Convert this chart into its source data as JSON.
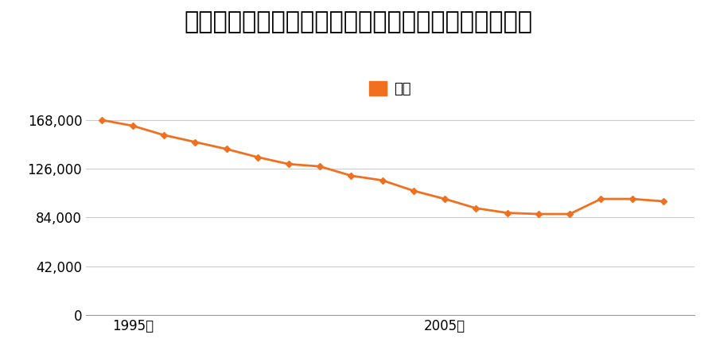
{
  "title": "宮城県仙台市泉区七北田字横山４０番３７の地価推移",
  "legend_label": "価格",
  "years": [
    1994,
    1995,
    1996,
    1997,
    1998,
    1999,
    2000,
    2001,
    2002,
    2003,
    2004,
    2005,
    2006,
    2007,
    2008,
    2009,
    2010,
    2011,
    2012
  ],
  "values": [
    168000,
    163000,
    155000,
    149000,
    143000,
    136000,
    130000,
    128000,
    120000,
    116000,
    107000,
    100000,
    92000,
    88000,
    87000,
    87000,
    100000,
    100000,
    98000
  ],
  "line_color": "#f07020",
  "marker_color": "#f07020",
  "background_color": "#ffffff",
  "grid_color": "#cccccc",
  "yticks": [
    0,
    42000,
    84000,
    126000,
    168000
  ],
  "xticks": [
    1995,
    2005
  ],
  "xlim": [
    1993.5,
    2013
  ],
  "ylim": [
    0,
    185000
  ],
  "title_fontsize": 22,
  "legend_fontsize": 13,
  "tick_fontsize": 12
}
